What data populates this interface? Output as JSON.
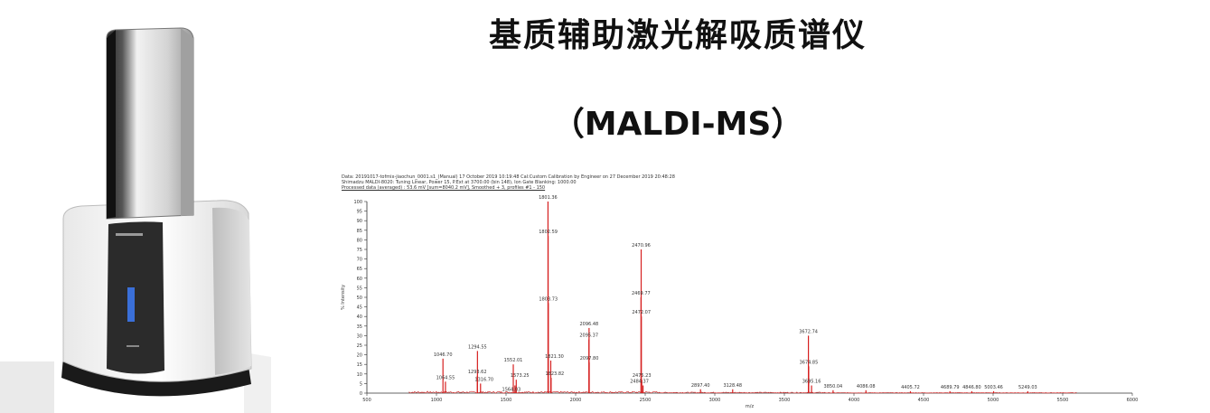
{
  "title": {
    "chinese": "基质辅助激光解吸质谱仪",
    "english": "（MALDI-MS）"
  },
  "instrument": {
    "brand_text": "SHIMADZU",
    "model_text": "MALDI-8020"
  },
  "chart_meta": {
    "line1": "Data: 20191017-tofmix-jiaochun_0001.s1_(Manual) 17 October 2019 10:19:48 Cal:Custom Calibration by Engineer on 27 December 2019 20:48:28",
    "line2": "Shimadzu MALDI-8020: Tuning Linear, Power 15, P.Ext at 3700.00 (bin 148), Ion Gate Blanking: 1000.00",
    "line3": "Processed data (averaged) : 53.6 mV [sum=8040.2 mV], Smoothed + 3, profiles #1 - 150"
  },
  "colors": {
    "spectrum": "#d62020",
    "axis": "#333333",
    "text": "#111111"
  },
  "chart_data": {
    "type": "line",
    "title": "",
    "xlabel": "m/z",
    "ylabel": "% Intensity",
    "xlim": [
      500,
      6000
    ],
    "ylim": [
      0,
      100
    ],
    "x_ticks": [
      500,
      1000,
      1500,
      2000,
      2500,
      3000,
      3500,
      4000,
      4500,
      5000,
      5500,
      6000
    ],
    "y_ticks": [
      0,
      5,
      10,
      15,
      20,
      25,
      30,
      35,
      40,
      45,
      50,
      55,
      60,
      65,
      70,
      75,
      80,
      85,
      90,
      95,
      100
    ],
    "peaks": [
      {
        "x": 1046.7,
        "y": 18,
        "label": "1046.70"
      },
      {
        "x": 1064.55,
        "y": 6,
        "label": "1064.55"
      },
      {
        "x": 1294.55,
        "y": 22,
        "label": "1294.55"
      },
      {
        "x": 1293.62,
        "y": 9,
        "label": "1293.62"
      },
      {
        "x": 1316.7,
        "y": 5,
        "label": "1316.70"
      },
      {
        "x": 1552.01,
        "y": 15,
        "label": "1552.01"
      },
      {
        "x": 1573.25,
        "y": 7,
        "label": "1573.25"
      },
      {
        "x": 1564.03,
        "y": 4,
        "label": "1564.03"
      },
      {
        "x": 1801.36,
        "y": 100,
        "label": "1801.36"
      },
      {
        "x": 1802.59,
        "y": 82,
        "label": "1802.59"
      },
      {
        "x": 1803.73,
        "y": 47,
        "label": "1803.73"
      },
      {
        "x": 1821.3,
        "y": 17,
        "label": "1821.30"
      },
      {
        "x": 1823.82,
        "y": 8,
        "label": "1823.82"
      },
      {
        "x": 2096.48,
        "y": 34,
        "label": "2096.48"
      },
      {
        "x": 2095.37,
        "y": 28,
        "label": "2095.37"
      },
      {
        "x": 2097.8,
        "y": 16,
        "label": "2097.80"
      },
      {
        "x": 2470.96,
        "y": 75,
        "label": "2470.96"
      },
      {
        "x": 2469.77,
        "y": 50,
        "label": "2469.77"
      },
      {
        "x": 2472.07,
        "y": 40,
        "label": "2472.07"
      },
      {
        "x": 2475.23,
        "y": 7,
        "label": "2475.23"
      },
      {
        "x": 2484.37,
        "y": 4,
        "label": "2484.37"
      },
      {
        "x": 2897.4,
        "y": 2,
        "label": "2897.40"
      },
      {
        "x": 3128.48,
        "y": 2,
        "label": "3128.48"
      },
      {
        "x": 3672.74,
        "y": 30,
        "label": "3672.74"
      },
      {
        "x": 3674.85,
        "y": 14,
        "label": "3674.85"
      },
      {
        "x": 3695.16,
        "y": 4,
        "label": "3695.16"
      },
      {
        "x": 3850.04,
        "y": 1.5,
        "label": "3850.04"
      },
      {
        "x": 4086.08,
        "y": 1.5,
        "label": "4086.08"
      },
      {
        "x": 4405.72,
        "y": 1,
        "label": "4405.72"
      },
      {
        "x": 4689.79,
        "y": 1,
        "label": "4689.79"
      },
      {
        "x": 4846.8,
        "y": 1,
        "label": "4846.80"
      },
      {
        "x": 5003.46,
        "y": 1,
        "label": "5003.46"
      },
      {
        "x": 5249.03,
        "y": 1,
        "label": "5249.03"
      }
    ]
  }
}
